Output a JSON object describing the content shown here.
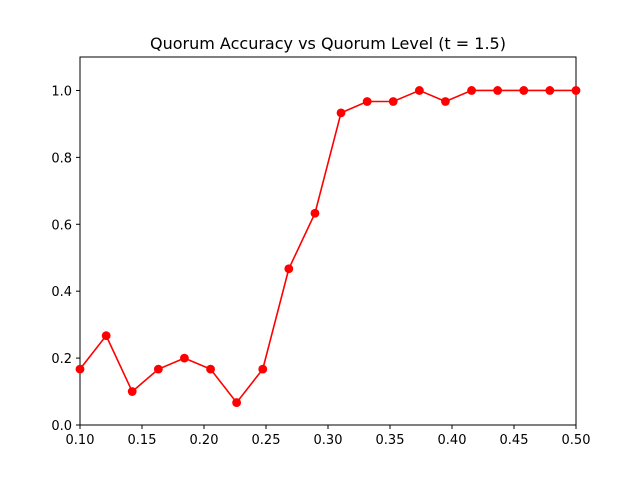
{
  "chart_data": {
    "type": "line",
    "title": "Quorum Accuracy vs Quorum Level (t = 1.5)",
    "xlabel": "",
    "ylabel": "",
    "xlim": [
      0.1,
      0.5
    ],
    "ylim": [
      0.0,
      1.1
    ],
    "xticks": [
      "0.10",
      "0.15",
      "0.20",
      "0.25",
      "0.30",
      "0.35",
      "0.40",
      "0.45",
      "0.50"
    ],
    "yticks": [
      "0.0",
      "0.2",
      "0.4",
      "0.6",
      "0.8",
      "1.0"
    ],
    "grid": false,
    "series": [
      {
        "color": "#ff0000",
        "marker": "circle",
        "x": [
          0.1,
          0.1211,
          0.1421,
          0.1632,
          0.1842,
          0.2053,
          0.2263,
          0.2474,
          0.2684,
          0.2895,
          0.3105,
          0.3316,
          0.3526,
          0.3737,
          0.3947,
          0.4158,
          0.4368,
          0.4579,
          0.4789,
          0.5
        ],
        "y": [
          0.167,
          0.267,
          0.1,
          0.167,
          0.2,
          0.167,
          0.067,
          0.167,
          0.467,
          0.633,
          0.933,
          0.967,
          0.967,
          1.0,
          0.967,
          1.0,
          1.0,
          1.0,
          1.0,
          1.0
        ]
      }
    ]
  }
}
